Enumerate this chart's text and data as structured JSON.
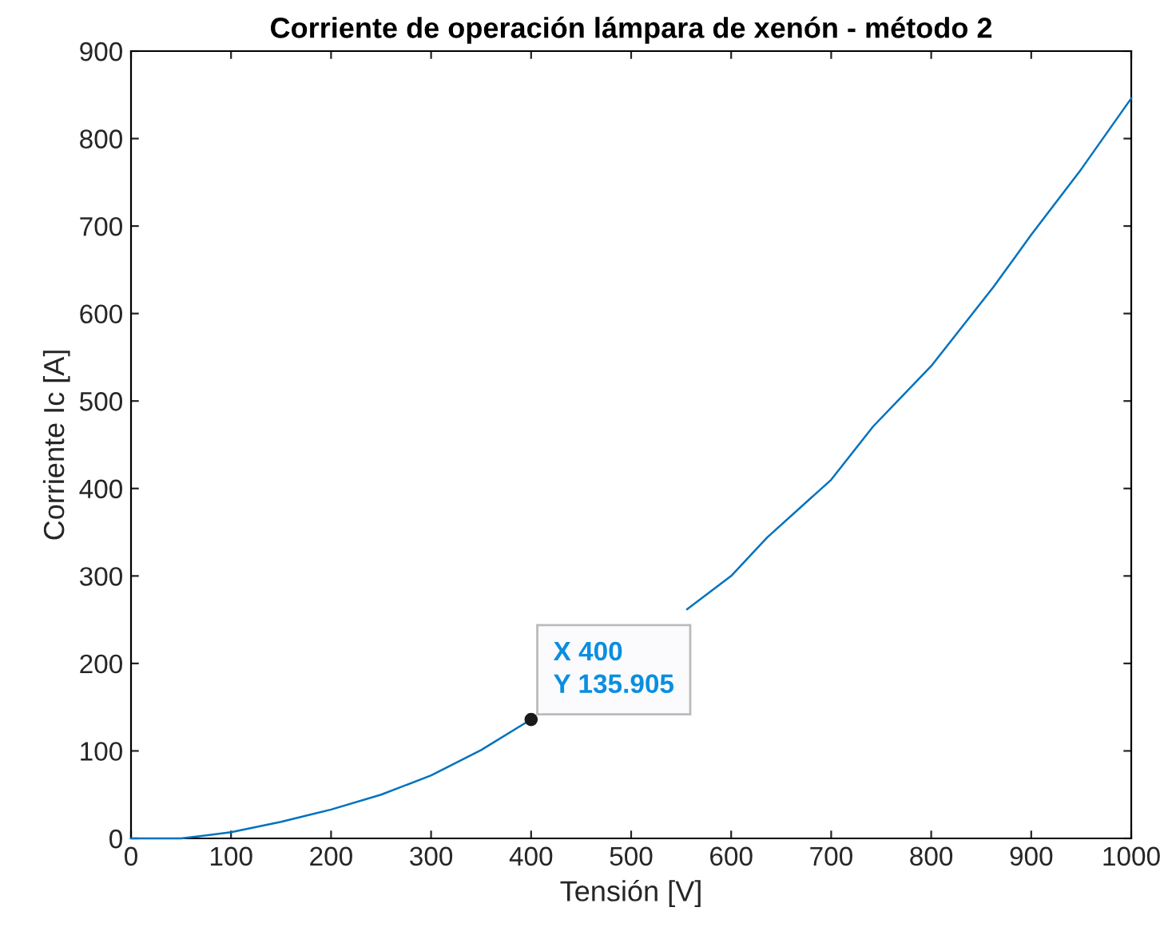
{
  "chart_data": {
    "type": "line",
    "title": "Corriente de operación lámpara de xenón - método 2",
    "xlabel": "Tensión [V]",
    "ylabel": "Corriente Ic [A]",
    "x": [
      0,
      50,
      100,
      150,
      200,
      250,
      300,
      350,
      400,
      450,
      500,
      556,
      600,
      636,
      700,
      742,
      800,
      862,
      900,
      950,
      1000
    ],
    "series": [
      {
        "color": "#0072bd",
        "values": [
          0,
          0,
          7,
          19,
          33,
          50,
          72,
          101,
          136,
          null,
          null,
          262,
          300,
          344,
          410,
          471,
          540,
          630,
          690,
          765,
          846
        ]
      }
    ],
    "annotations": [
      {
        "text": "X 400\nY 135.905",
        "x": 400,
        "y": 135.905
      }
    ],
    "xlim": [
      0,
      1000
    ],
    "ylim": [
      0,
      900
    ],
    "xticks": [
      0,
      100,
      200,
      300,
      400,
      500,
      600,
      700,
      800,
      900,
      1000
    ],
    "yticks": [
      0,
      100,
      200,
      300,
      400,
      500,
      600,
      700,
      800,
      900
    ],
    "grid": false,
    "marker": "none",
    "line_style": "solid"
  }
}
